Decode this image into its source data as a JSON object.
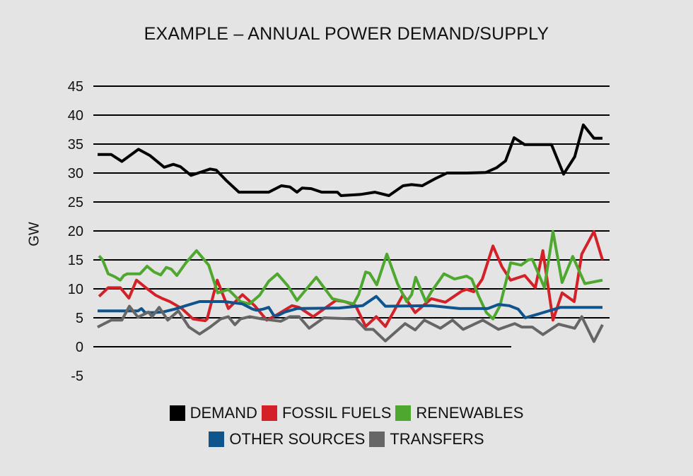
{
  "chart_data": {
    "type": "line",
    "title": "EXAMPLE – ANNUAL POWER DEMAND/SUPPLY",
    "xlabel": "",
    "ylabel": "GW",
    "xlim": [
      0,
      100
    ],
    "ylim": [
      -5,
      45
    ],
    "yticks": [
      45,
      40,
      35,
      30,
      25,
      20,
      15,
      10,
      5,
      0,
      -5
    ],
    "grid": true,
    "legend_position": "bottom",
    "series": [
      {
        "name": "DEMAND",
        "color": "#000000",
        "points": [
          [
            0,
            33.2
          ],
          [
            2.7,
            33.2
          ],
          [
            4.8,
            32.0
          ],
          [
            8.1,
            34.1
          ],
          [
            10.4,
            33.0
          ],
          [
            13.2,
            31.0
          ],
          [
            15,
            31.5
          ],
          [
            16.4,
            31.1
          ],
          [
            18.5,
            29.6
          ],
          [
            20.6,
            30.2
          ],
          [
            22.3,
            30.7
          ],
          [
            23.5,
            30.5
          ],
          [
            25.5,
            28.7
          ],
          [
            28,
            26.7
          ],
          [
            33.9,
            26.7
          ],
          [
            36.4,
            27.8
          ],
          [
            38.1,
            27.6
          ],
          [
            39.5,
            26.7
          ],
          [
            40.5,
            27.4
          ],
          [
            42.3,
            27.3
          ],
          [
            44.4,
            26.7
          ],
          [
            47.5,
            26.7
          ],
          [
            48.2,
            26.1
          ],
          [
            52.1,
            26.3
          ],
          [
            54.9,
            26.7
          ],
          [
            57.7,
            26.1
          ],
          [
            60.5,
            27.8
          ],
          [
            62.2,
            28.0
          ],
          [
            64.3,
            27.8
          ],
          [
            66.8,
            29.0
          ],
          [
            69.2,
            30.0
          ],
          [
            73.1,
            30.0
          ],
          [
            76.9,
            30.1
          ],
          [
            79,
            30.9
          ],
          [
            80.8,
            32.1
          ],
          [
            82.5,
            36.1
          ],
          [
            84.6,
            34.9
          ],
          [
            89.9,
            34.9
          ],
          [
            92.3,
            29.8
          ],
          [
            94.5,
            32.8
          ],
          [
            96.2,
            38.3
          ],
          [
            98.3,
            36.0
          ],
          [
            100,
            36.0
          ]
        ]
      },
      {
        "name": "FOSSIL FUELS",
        "color": "#d42027",
        "points": [
          [
            0.3,
            8.7
          ],
          [
            2.1,
            10.2
          ],
          [
            4.5,
            10.2
          ],
          [
            6.2,
            8.4
          ],
          [
            7.7,
            11.5
          ],
          [
            9.7,
            10.1
          ],
          [
            11.5,
            8.9
          ],
          [
            12.9,
            8.3
          ],
          [
            14.3,
            7.8
          ],
          [
            16.7,
            6.6
          ],
          [
            18.9,
            4.8
          ],
          [
            21.3,
            4.5
          ],
          [
            21.7,
            4.8
          ],
          [
            23.7,
            11.5
          ],
          [
            25.9,
            6.6
          ],
          [
            28.7,
            9.0
          ],
          [
            31.1,
            7.1
          ],
          [
            33.5,
            4.6
          ],
          [
            35.3,
            5.4
          ],
          [
            38.5,
            7.1
          ],
          [
            39.9,
            6.8
          ],
          [
            42.7,
            5.2
          ],
          [
            47.2,
            8.0
          ],
          [
            48.9,
            7.8
          ],
          [
            51.1,
            7.1
          ],
          [
            53.1,
            3.5
          ],
          [
            55.2,
            5.2
          ],
          [
            57,
            3.5
          ],
          [
            60.5,
            9.0
          ],
          [
            62.9,
            5.9
          ],
          [
            66.1,
            8.3
          ],
          [
            68.9,
            7.7
          ],
          [
            72.1,
            9.6
          ],
          [
            73.1,
            9.9
          ],
          [
            74.5,
            9.5
          ],
          [
            76.2,
            11.7
          ],
          [
            78.3,
            17.4
          ],
          [
            80.1,
            13.8
          ],
          [
            81.8,
            11.5
          ],
          [
            84.6,
            12.3
          ],
          [
            86.7,
            10.2
          ],
          [
            88.2,
            16.6
          ],
          [
            90.2,
            4.6
          ],
          [
            92,
            9.3
          ],
          [
            94.4,
            7.8
          ],
          [
            95.9,
            16.0
          ],
          [
            98.3,
            19.9
          ],
          [
            100,
            15.0
          ]
        ]
      },
      {
        "name": "RENEWABLES",
        "color": "#4ea72e",
        "points": [
          [
            0.3,
            15.7
          ],
          [
            1,
            15.0
          ],
          [
            2.1,
            12.6
          ],
          [
            3.4,
            12.1
          ],
          [
            4.5,
            11.5
          ],
          [
            5.2,
            12.3
          ],
          [
            5.9,
            12.6
          ],
          [
            8.4,
            12.6
          ],
          [
            9.8,
            13.9
          ],
          [
            11.2,
            12.9
          ],
          [
            12.5,
            12.4
          ],
          [
            13.6,
            13.7
          ],
          [
            14.6,
            13.4
          ],
          [
            15.7,
            12.3
          ],
          [
            17.5,
            14.5
          ],
          [
            19.6,
            16.6
          ],
          [
            22,
            14.1
          ],
          [
            23.8,
            9.3
          ],
          [
            25.9,
            9.9
          ],
          [
            28.3,
            7.8
          ],
          [
            30.1,
            7.4
          ],
          [
            32.1,
            8.9
          ],
          [
            33.9,
            11.3
          ],
          [
            35.6,
            12.6
          ],
          [
            37.7,
            10.5
          ],
          [
            39.5,
            8.0
          ],
          [
            43.3,
            12.0
          ],
          [
            46.5,
            8.3
          ],
          [
            48.9,
            7.8
          ],
          [
            50.7,
            7.4
          ],
          [
            51.7,
            9.0
          ],
          [
            53.1,
            12.9
          ],
          [
            53.9,
            12.7
          ],
          [
            55.3,
            10.7
          ],
          [
            57.3,
            16.0
          ],
          [
            59.4,
            10.9
          ],
          [
            61.2,
            7.8
          ],
          [
            62.2,
            9.0
          ],
          [
            63,
            12.0
          ],
          [
            65,
            7.8
          ],
          [
            66.1,
            9.5
          ],
          [
            68.6,
            12.6
          ],
          [
            70.7,
            11.7
          ],
          [
            73.1,
            12.2
          ],
          [
            74.1,
            11.7
          ],
          [
            75.5,
            8.7
          ],
          [
            77,
            5.9
          ],
          [
            78.3,
            4.8
          ],
          [
            79.7,
            7.1
          ],
          [
            81.8,
            14.5
          ],
          [
            83.9,
            14.1
          ],
          [
            85.3,
            15.0
          ],
          [
            86.1,
            15.1
          ],
          [
            88.5,
            10.2
          ],
          [
            90.2,
            19.9
          ],
          [
            92,
            11.1
          ],
          [
            94.1,
            15.6
          ],
          [
            96.5,
            10.9
          ],
          [
            100,
            11.5
          ]
        ]
      },
      {
        "name": "OTHER SOURCES",
        "color": "#0f548c",
        "points": [
          [
            0,
            6.2
          ],
          [
            8,
            6.2
          ],
          [
            8.7,
            6.6
          ],
          [
            9.4,
            5.9
          ],
          [
            11.1,
            5.9
          ],
          [
            12.9,
            6.0
          ],
          [
            15.3,
            6.5
          ],
          [
            17.5,
            7.1
          ],
          [
            20.2,
            7.8
          ],
          [
            25.1,
            7.8
          ],
          [
            28.7,
            7.4
          ],
          [
            30.7,
            6.5
          ],
          [
            31.5,
            6.3
          ],
          [
            32.8,
            6.5
          ],
          [
            33.9,
            6.8
          ],
          [
            34.9,
            5.4
          ],
          [
            35.7,
            5.4
          ],
          [
            37.1,
            6.0
          ],
          [
            39.5,
            6.6
          ],
          [
            47.9,
            6.7
          ],
          [
            52.5,
            7.1
          ],
          [
            55.2,
            8.7
          ],
          [
            57,
            7.0
          ],
          [
            66.1,
            7.1
          ],
          [
            71.7,
            6.6
          ],
          [
            77.3,
            6.6
          ],
          [
            79.4,
            7.3
          ],
          [
            81.5,
            7.1
          ],
          [
            83.3,
            6.5
          ],
          [
            84.7,
            5.0
          ],
          [
            87.1,
            5.6
          ],
          [
            91.7,
            6.8
          ],
          [
            100,
            6.8
          ]
        ]
      },
      {
        "name": "TRANSFERS",
        "color": "#666666",
        "points": [
          [
            0,
            3.4
          ],
          [
            2.7,
            4.6
          ],
          [
            4.8,
            4.6
          ],
          [
            6.3,
            7.0
          ],
          [
            8,
            5.1
          ],
          [
            10.1,
            6.0
          ],
          [
            10.8,
            5.2
          ],
          [
            12.2,
            6.8
          ],
          [
            13.9,
            4.6
          ],
          [
            16,
            6.2
          ],
          [
            18.1,
            3.4
          ],
          [
            20.2,
            2.2
          ],
          [
            22.3,
            3.4
          ],
          [
            24.4,
            4.8
          ],
          [
            25.9,
            5.2
          ],
          [
            27.2,
            3.8
          ],
          [
            28.3,
            4.8
          ],
          [
            30.1,
            5.2
          ],
          [
            32.6,
            4.8
          ],
          [
            36.3,
            4.4
          ],
          [
            38.1,
            5.2
          ],
          [
            39.9,
            5.2
          ],
          [
            41.9,
            3.2
          ],
          [
            44.8,
            5.0
          ],
          [
            51.1,
            4.8
          ],
          [
            53.1,
            3.0
          ],
          [
            54.6,
            3.0
          ],
          [
            57,
            1.0
          ],
          [
            60.9,
            4.0
          ],
          [
            62.9,
            2.9
          ],
          [
            64.7,
            4.6
          ],
          [
            67.9,
            3.2
          ],
          [
            70.3,
            4.6
          ],
          [
            72.4,
            3.0
          ],
          [
            76.3,
            4.6
          ],
          [
            79.4,
            3.0
          ],
          [
            82.6,
            4.0
          ],
          [
            84,
            3.4
          ],
          [
            86.1,
            3.4
          ],
          [
            88.2,
            2.1
          ],
          [
            91.3,
            3.9
          ],
          [
            94.5,
            3.2
          ],
          [
            95.9,
            5.2
          ],
          [
            98.3,
            0.9
          ],
          [
            100,
            3.8
          ]
        ]
      }
    ]
  }
}
